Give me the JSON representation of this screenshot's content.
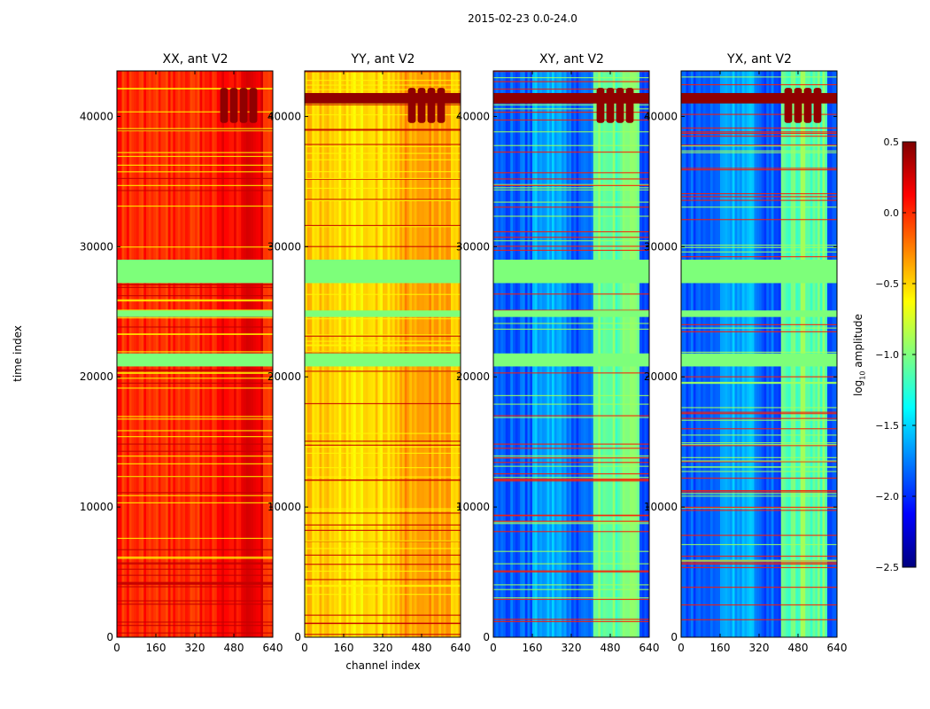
{
  "suptitle": "2015-02-23 0.0-24.0",
  "ylabel": "time index",
  "xlabel": "channel index",
  "colorbar_label_prefix": "log",
  "colorbar_label_sub": "10",
  "colorbar_label_suffix": " amplitude",
  "colorbar_ticks": [
    "0.5",
    "0.0",
    "−0.5",
    "−1.0",
    "−1.5",
    "−2.0",
    "−2.5"
  ],
  "colors": {
    "flagged": "#7dff7a",
    "jet": [
      "#00007f",
      "#0000ff",
      "#007fff",
      "#00ffff",
      "#7fff7f",
      "#ffff00",
      "#ff7f00",
      "#ff0000",
      "#7f0000"
    ]
  },
  "chart_data": [
    {
      "type": "heatmap",
      "title": "XX, ant V2",
      "xlim": [
        0,
        640
      ],
      "ylim": [
        0,
        43500
      ],
      "xticks": [
        "0",
        "160",
        "320",
        "480",
        "640"
      ],
      "yticks": [
        "0",
        "10000",
        "20000",
        "30000",
        "40000"
      ],
      "clim": [
        -2.5,
        0.5
      ],
      "base_level": 0.02,
      "flagged_time_ranges": [
        [
          20800,
          21800
        ],
        [
          24600,
          25100
        ],
        [
          27200,
          29000
        ]
      ]
    },
    {
      "type": "heatmap",
      "title": "YY, ant V2",
      "xlim": [
        0,
        640
      ],
      "ylim": [
        0,
        43500
      ],
      "xticks": [
        "0",
        "160",
        "320",
        "480",
        "640"
      ],
      "yticks": [
        "0",
        "10000",
        "20000",
        "30000",
        "40000"
      ],
      "clim": [
        -2.5,
        0.5
      ],
      "base_level": -0.45,
      "flagged_time_ranges": [
        [
          20800,
          21800
        ],
        [
          24600,
          25100
        ],
        [
          27200,
          29000
        ]
      ]
    },
    {
      "type": "heatmap",
      "title": "XY, ant V2",
      "xlim": [
        0,
        640
      ],
      "ylim": [
        0,
        43500
      ],
      "xticks": [
        "0",
        "160",
        "320",
        "480",
        "640"
      ],
      "yticks": [
        "0",
        "10000",
        "20000",
        "30000",
        "40000"
      ],
      "clim": [
        -2.5,
        0.5
      ],
      "base_level": -1.85,
      "flagged_time_ranges": [
        [
          20800,
          21800
        ],
        [
          24600,
          25100
        ],
        [
          27200,
          29000
        ]
      ]
    },
    {
      "type": "heatmap",
      "title": "YX, ant V2",
      "xlim": [
        0,
        640
      ],
      "ylim": [
        0,
        43500
      ],
      "xticks": [
        "0",
        "160",
        "320",
        "480",
        "640"
      ],
      "yticks": [
        "0",
        "10000",
        "20000",
        "30000",
        "40000"
      ],
      "clim": [
        -2.5,
        0.5
      ],
      "base_level": -1.85,
      "flagged_time_ranges": [
        [
          20800,
          21800
        ],
        [
          24600,
          25100
        ],
        [
          27200,
          29000
        ]
      ]
    }
  ]
}
